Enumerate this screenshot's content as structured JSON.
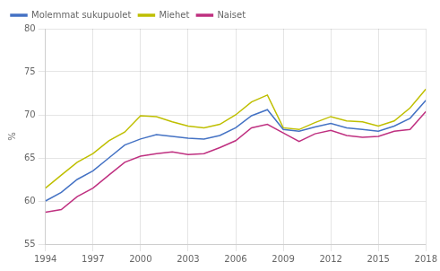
{
  "chart_data": {
    "type": "line",
    "ylabel": "%",
    "x": [
      1994,
      1995,
      1996,
      1997,
      1998,
      1999,
      2000,
      2001,
      2002,
      2003,
      2004,
      2005,
      2006,
      2007,
      2008,
      2009,
      2010,
      2011,
      2012,
      2013,
      2014,
      2015,
      2016,
      2017,
      2018
    ],
    "series": [
      {
        "name": "Molemmat sukupuolet",
        "color": "#4472C4",
        "values": [
          60.0,
          61.0,
          62.5,
          63.5,
          65.0,
          66.5,
          67.2,
          67.7,
          67.5,
          67.3,
          67.2,
          67.6,
          68.5,
          69.9,
          70.6,
          68.3,
          68.1,
          68.6,
          69.0,
          68.5,
          68.3,
          68.1,
          68.7,
          69.6,
          71.7
        ]
      },
      {
        "name": "Miehet",
        "color": "#BFBF00",
        "values": [
          61.5,
          63.0,
          64.5,
          65.5,
          67.0,
          68.0,
          69.9,
          69.8,
          69.2,
          68.7,
          68.5,
          68.9,
          70.0,
          71.5,
          72.3,
          68.5,
          68.3,
          69.1,
          69.8,
          69.3,
          69.2,
          68.7,
          69.3,
          70.8,
          73.0
        ]
      },
      {
        "name": "Naiset",
        "color": "#BF3080",
        "values": [
          58.7,
          59.0,
          60.5,
          61.5,
          63.0,
          64.5,
          65.2,
          65.5,
          65.7,
          65.4,
          65.5,
          66.2,
          67.0,
          68.5,
          68.9,
          67.9,
          66.9,
          67.8,
          68.2,
          67.6,
          67.4,
          67.5,
          68.1,
          68.3,
          70.4
        ]
      }
    ],
    "xlim": [
      1994,
      2018
    ],
    "xticks": [
      1994,
      1997,
      2000,
      2003,
      2006,
      2009,
      2012,
      2015,
      2018
    ],
    "ylim": [
      55,
      80
    ],
    "yticks": [
      55,
      60,
      65,
      70,
      75,
      80
    ],
    "grid": true,
    "legend": "upper left"
  }
}
